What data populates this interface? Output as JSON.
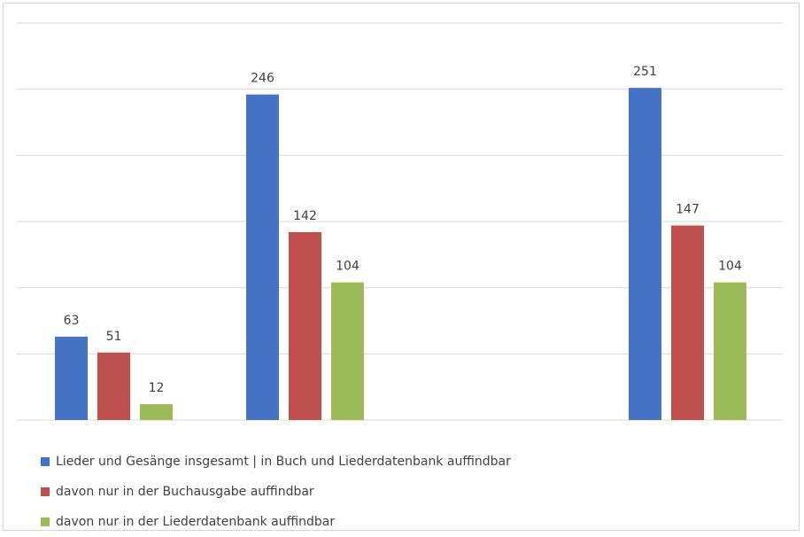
{
  "chart_data": {
    "type": "bar",
    "categories": [
      "",
      "",
      ""
    ],
    "series": [
      {
        "name": "Lieder und Gesänge insgesamt | in Buch und Liederdatenbank auffindbar",
        "values": [
          63,
          246,
          251
        ],
        "color": "#4472c4"
      },
      {
        "name": "davon nur in der Buchausgabe auffindbar",
        "values": [
          51,
          142,
          147
        ],
        "color": "#c0504d"
      },
      {
        "name": "davon nur in der Liederdatenbank auffindbar",
        "values": [
          12,
          104,
          104
        ],
        "color": "#9bbb59"
      }
    ],
    "ylim": [
      0,
      300
    ],
    "grid": true,
    "data_labels": true,
    "legend_position": "bottom-left"
  }
}
